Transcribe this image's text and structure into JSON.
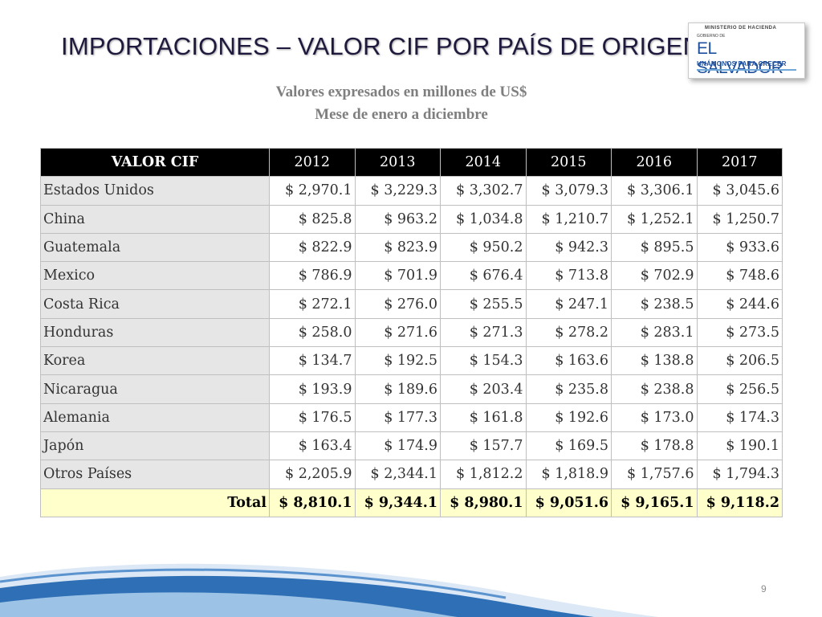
{
  "title": "IMPORTACIONES –  VALOR CIF POR PAÍS DE ORIGEN",
  "subtitle_line1": "Valores expresados en millones de US$",
  "subtitle_line2": "Mese de enero a diciembre",
  "logo": {
    "ministry": "MINISTERIO DE HACIENDA",
    "gobierno": "GOBIERNO DE",
    "name": "EL SALVADOR",
    "slogan": "UNÁMONOS PARA CRECER"
  },
  "table": {
    "headers": [
      "VALOR CIF",
      "2012",
      "2013",
      "2014",
      "2015",
      "2016",
      "2017"
    ],
    "rows": [
      {
        "country": "Estados Unidos",
        "values": [
          "$ 2,970.1",
          "$ 3,229.3",
          "$ 3,302.7",
          "$ 3,079.3",
          "$ 3,306.1",
          "$ 3,045.6"
        ]
      },
      {
        "country": "China",
        "values": [
          "$ 825.8",
          "$ 963.2",
          "$ 1,034.8",
          "$ 1,210.7",
          "$ 1,252.1",
          "$ 1,250.7"
        ]
      },
      {
        "country": "Guatemala",
        "values": [
          "$ 822.9",
          "$ 823.9",
          "$ 950.2",
          "$ 942.3",
          "$ 895.5",
          "$ 933.6"
        ]
      },
      {
        "country": "Mexico",
        "values": [
          "$ 786.9",
          "$ 701.9",
          "$ 676.4",
          "$ 713.8",
          "$ 702.9",
          "$ 748.6"
        ]
      },
      {
        "country": "Costa Rica",
        "values": [
          "$ 272.1",
          "$ 276.0",
          "$ 255.5",
          "$ 247.1",
          "$ 238.5",
          "$ 244.6"
        ]
      },
      {
        "country": "Honduras",
        "values": [
          "$ 258.0",
          "$ 271.6",
          "$ 271.3",
          "$ 278.2",
          "$ 283.1",
          "$ 273.5"
        ]
      },
      {
        "country": "Korea",
        "values": [
          "$ 134.7",
          "$ 192.5",
          "$ 154.3",
          "$ 163.6",
          "$ 138.8",
          "$ 206.5"
        ]
      },
      {
        "country": "Nicaragua",
        "values": [
          "$ 193.9",
          "$ 189.6",
          "$ 203.4",
          "$ 235.8",
          "$ 238.8",
          "$ 256.5"
        ]
      },
      {
        "country": "Alemania",
        "values": [
          "$ 176.5",
          "$ 177.3",
          "$ 161.8",
          "$ 192.6",
          "$ 173.0",
          "$ 174.3"
        ]
      },
      {
        "country": "Japón",
        "values": [
          "$ 163.4",
          "$ 174.9",
          "$ 157.7",
          "$ 169.5",
          "$ 178.8",
          "$ 190.1"
        ]
      },
      {
        "country": "Otros Países",
        "values": [
          "$ 2,205.9",
          "$ 2,344.1",
          "$ 1,812.2",
          "$ 1,818.9",
          "$ 1,757.6",
          "$ 1,794.3"
        ]
      }
    ],
    "total": {
      "label": "Total",
      "values": [
        "$ 8,810.1",
        "$ 9,344.1",
        "$ 8,980.1",
        "$ 9,051.6",
        "$ 9,165.1",
        "$ 9,118.2"
      ]
    }
  },
  "page_number": "9",
  "colors": {
    "header_bg": "#000000",
    "label_col_bg": "#e6e6e6",
    "total_bg": "#ffffcc",
    "swoosh_blue": "#2e6fb5"
  }
}
